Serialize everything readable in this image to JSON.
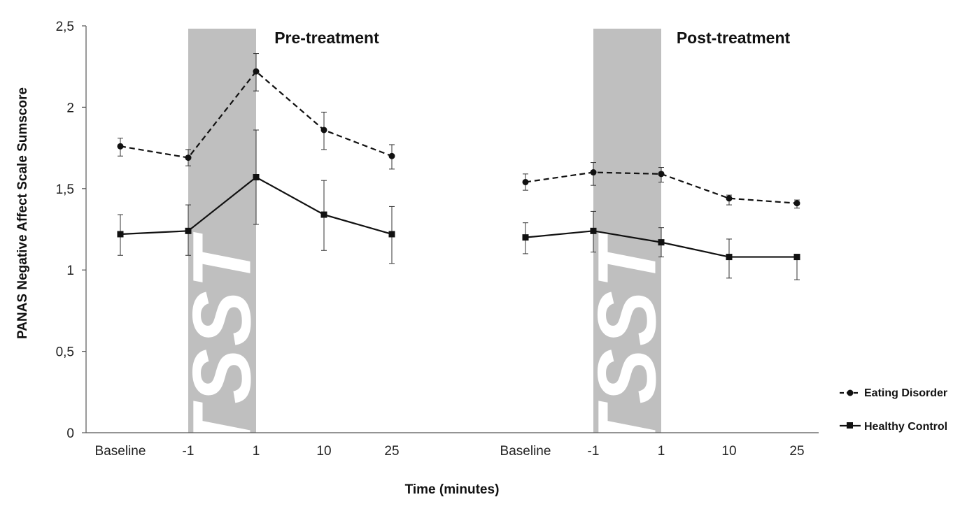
{
  "chart_data": {
    "type": "line",
    "ylabel": "PANAS Negative Affect Scale Sumscore",
    "xlabel": "Time (minutes)",
    "ylim": [
      0,
      2.5
    ],
    "yticks": [
      "0",
      "0,5",
      "1",
      "1,5",
      "2",
      "2,5"
    ],
    "ytick_values": [
      0,
      0.5,
      1,
      1.5,
      2,
      2.5
    ],
    "categories": [
      "Baseline",
      "-1",
      "1",
      "10",
      "25"
    ],
    "stress_task_label": "TSST",
    "panels": [
      {
        "title": "Pre-treatment",
        "series": [
          {
            "name": "Eating Disorder",
            "marker": "circle",
            "line": "dashed",
            "values": [
              1.76,
              1.69,
              2.22,
              1.86,
              1.7
            ],
            "err_low": [
              1.7,
              1.64,
              2.1,
              1.74,
              1.62
            ],
            "err_high": [
              1.81,
              1.74,
              2.33,
              1.97,
              1.77
            ]
          },
          {
            "name": "Healthy Control",
            "marker": "square",
            "line": "solid",
            "values": [
              1.22,
              1.24,
              1.57,
              1.34,
              1.22
            ],
            "err_low": [
              1.09,
              1.09,
              1.28,
              1.12,
              1.04
            ],
            "err_high": [
              1.34,
              1.4,
              1.86,
              1.55,
              1.39
            ]
          }
        ]
      },
      {
        "title": "Post-treatment",
        "series": [
          {
            "name": "Eating Disorder",
            "marker": "circle",
            "line": "dashed",
            "values": [
              1.54,
              1.6,
              1.59,
              1.44,
              1.41
            ],
            "err_low": [
              1.49,
              1.52,
              1.54,
              1.4,
              1.38
            ],
            "err_high": [
              1.59,
              1.66,
              1.63,
              1.46,
              1.43
            ]
          },
          {
            "name": "Healthy Control",
            "marker": "square",
            "line": "solid",
            "values": [
              1.2,
              1.24,
              1.17,
              1.08,
              1.08
            ],
            "err_low": [
              1.1,
              1.11,
              1.08,
              0.95,
              0.94
            ],
            "err_high": [
              1.29,
              1.36,
              1.26,
              1.19,
              1.07
            ]
          }
        ]
      }
    ],
    "legend": {
      "position": "right",
      "entries": [
        "Eating Disorder",
        "Healthy Control"
      ]
    }
  }
}
